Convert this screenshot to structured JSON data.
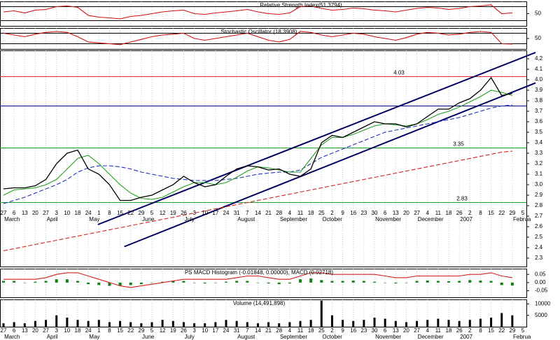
{
  "chart_data": [
    {
      "type": "line",
      "title": "Relative Strength Index(51.3794)",
      "ylim": [
        15,
        85
      ],
      "yticks": [
        50
      ],
      "levels": [
        {
          "value": 30,
          "color": "#000000",
          "show_label": false
        },
        {
          "value": 70,
          "color": "#000000",
          "show_label": false
        }
      ],
      "series": [
        {
          "color": "#d01010",
          "dash": false,
          "values": [
            55,
            58,
            52,
            60,
            62,
            70,
            72,
            68,
            45,
            40,
            38,
            35,
            42,
            45,
            50,
            55,
            58,
            60,
            50,
            48,
            52,
            55,
            58,
            62,
            55,
            50,
            48,
            52,
            70,
            72,
            65,
            60,
            62,
            66,
            64,
            60,
            58,
            55,
            60,
            65,
            68,
            66,
            62,
            65,
            70,
            72,
            75,
            50,
            52,
            null
          ]
        }
      ]
    },
    {
      "type": "line",
      "title": "Stochastic Oscillator (18.3908)",
      "ylim": [
        -10,
        110
      ],
      "yticks": [
        50
      ],
      "levels": [
        {
          "value": 20,
          "color": "#000000",
          "show_label": false
        },
        {
          "value": 80,
          "color": "#000000",
          "show_label": false
        }
      ],
      "series": [
        {
          "color": "#d01010",
          "dash": false,
          "values": [
            80,
            70,
            60,
            75,
            85,
            90,
            85,
            60,
            30,
            25,
            20,
            15,
            30,
            45,
            60,
            70,
            75,
            80,
            50,
            40,
            50,
            60,
            70,
            80,
            60,
            40,
            30,
            45,
            90,
            85,
            70,
            60,
            70,
            80,
            75,
            60,
            50,
            40,
            55,
            75,
            85,
            80,
            70,
            75,
            85,
            90,
            85,
            20,
            18,
            null
          ]
        }
      ]
    },
    {
      "type": "line",
      "categories": [
        "27",
        "6",
        "13",
        "20",
        "27",
        "3",
        "10",
        "18",
        "24",
        "1",
        "8",
        "15",
        "22",
        "29",
        "5",
        "12",
        "19",
        "26",
        "3",
        "10",
        "17",
        "24",
        "31",
        "7",
        "14",
        "21",
        "28",
        "4",
        "11",
        "18",
        "25",
        "2",
        "9",
        "16",
        "23",
        "30",
        "6",
        "13",
        "20",
        "27",
        "4",
        "11",
        "18",
        "26",
        "2",
        "8",
        "15",
        "22",
        "29",
        "5"
      ],
      "months": [
        "March",
        "April",
        "May",
        "June",
        "July",
        "August",
        "September",
        "October",
        "November",
        "December",
        "2007",
        "Februa"
      ],
      "ylim": [
        2.22,
        4.28
      ],
      "yticks": [
        2.3,
        2.4,
        2.5,
        2.6,
        2.7,
        2.8,
        2.9,
        {
          "value": 3,
          "label": "3.0"
        },
        3.1,
        3.2,
        3.3,
        3.4,
        3.5,
        3.6,
        3.7,
        3.8,
        3.9,
        {
          "value": 4,
          "label": "4.0"
        },
        4.1,
        4.2
      ],
      "levels": [
        {
          "value": 4.03,
          "color": "#e03030",
          "show_label": true
        },
        {
          "value": 3.75,
          "color": "#000080",
          "show_label": false
        },
        {
          "value": 3.35,
          "color": "#20a020",
          "show_label": true
        },
        {
          "value": 2.83,
          "color": "#20a020",
          "show_label": true
        }
      ],
      "trendlines": [
        {
          "x": [
            8.9,
            50.2
          ],
          "values": [
            2.62,
            4.26
          ],
          "color": "#000060"
        },
        {
          "x": [
            11.4,
            50.2
          ],
          "values": [
            2.41,
            3.97
          ],
          "color": "#000060"
        }
      ],
      "series": [
        {
          "color": "#d02020",
          "dash": true,
          "values": [
            2.37,
            2.39,
            2.41,
            2.43,
            2.45,
            2.47,
            2.49,
            2.51,
            2.53,
            2.55,
            2.57,
            2.59,
            2.61,
            2.63,
            2.65,
            2.67,
            2.69,
            2.71,
            2.73,
            2.75,
            2.77,
            2.79,
            2.81,
            2.83,
            2.85,
            2.87,
            2.89,
            2.91,
            2.93,
            2.95,
            2.97,
            2.99,
            3.01,
            3.03,
            3.05,
            3.07,
            3.09,
            3.11,
            3.13,
            3.15,
            3.17,
            3.19,
            3.21,
            3.23,
            3.25,
            3.27,
            3.29,
            3.31,
            3.32,
            null
          ]
        },
        {
          "color": "#2030c0",
          "dash": true,
          "values": [
            2.82,
            2.85,
            2.88,
            2.92,
            2.96,
            3.0,
            3.05,
            3.12,
            3.16,
            3.18,
            3.18,
            3.17,
            3.15,
            3.12,
            3.1,
            3.08,
            3.06,
            3.05,
            3.04,
            3.04,
            3.04,
            3.05,
            3.06,
            3.08,
            3.1,
            3.11,
            3.12,
            3.12,
            3.14,
            3.2,
            3.26,
            3.3,
            3.34,
            3.38,
            3.42,
            3.46,
            3.5,
            3.52,
            3.54,
            3.56,
            3.58,
            3.6,
            3.62,
            3.64,
            3.67,
            3.7,
            3.73,
            3.75,
            3.76,
            null
          ]
        },
        {
          "color": "#20a020",
          "dash": false,
          "values": [
            2.9,
            2.95,
            2.96,
            2.97,
            3.0,
            3.05,
            3.15,
            3.25,
            3.28,
            3.2,
            3.1,
            3.0,
            2.92,
            2.87,
            2.86,
            2.88,
            2.93,
            2.98,
            3.02,
            3.02,
            3.0,
            3.02,
            3.07,
            3.13,
            3.17,
            3.16,
            3.14,
            3.12,
            3.12,
            3.25,
            3.38,
            3.45,
            3.45,
            3.48,
            3.52,
            3.56,
            3.58,
            3.57,
            3.56,
            3.58,
            3.62,
            3.67,
            3.7,
            3.74,
            3.79,
            3.84,
            3.9,
            3.88,
            3.85,
            null
          ]
        },
        {
          "color": "#000000",
          "dash": false,
          "values": [
            2.96,
            2.97,
            2.97,
            2.99,
            3.05,
            3.2,
            3.3,
            3.33,
            3.15,
            3.1,
            3.0,
            2.85,
            2.85,
            2.88,
            2.9,
            2.95,
            3.0,
            3.08,
            3.02,
            2.98,
            3.0,
            3.08,
            3.15,
            3.18,
            3.17,
            3.14,
            3.15,
            3.1,
            3.08,
            3.15,
            3.4,
            3.47,
            3.45,
            3.5,
            3.55,
            3.6,
            3.58,
            3.58,
            3.55,
            3.58,
            3.65,
            3.72,
            3.72,
            3.78,
            3.82,
            3.9,
            4.02,
            3.85,
            3.87,
            null
          ]
        }
      ]
    },
    {
      "type": "macd",
      "title": "PS MACD Histogram (-0.01848, 0.00000), MACD (0.02718)",
      "ylim": [
        -0.09,
        0.085
      ],
      "yticks": [
        -0.05,
        {
          "value": 0,
          "label": "0.00"
        },
        0.05
      ],
      "bar_color": "#108010",
      "values": [
        0.01,
        0.01,
        0,
        0.005,
        0.01,
        0.02,
        0.02,
        0.01,
        -0.01,
        -0.015,
        -0.02,
        -0.02,
        -0.015,
        -0.01,
        0,
        0.005,
        0.01,
        0.01,
        0,
        -0.005,
        0,
        0.005,
        0.01,
        0.01,
        0,
        -0.005,
        -0.01,
        -0.005,
        0.02,
        0.025,
        0.015,
        0.01,
        0.01,
        0.012,
        0.01,
        0.005,
        0,
        -0.005,
        0,
        0.01,
        0.012,
        0.01,
        0.008,
        0.01,
        0.015,
        0.012,
        0.01,
        -0.015,
        -0.018,
        null
      ],
      "series": [
        {
          "color": "#d02020",
          "dash": false,
          "values": [
            0.02,
            0.02,
            0.02,
            0.02,
            0.03,
            0.05,
            0.06,
            0.06,
            0.04,
            0.02,
            0,
            -0.02,
            -0.03,
            -0.02,
            -0.01,
            0,
            0.01,
            0.02,
            0.02,
            0.02,
            0.02,
            0.02,
            0.03,
            0.04,
            0.04,
            0.03,
            0.02,
            0.02,
            0.04,
            0.06,
            0.06,
            0.05,
            0.05,
            0.05,
            0.05,
            0.05,
            0.04,
            0.03,
            0.03,
            0.04,
            0.04,
            0.04,
            0.04,
            0.04,
            0.05,
            0.05,
            0.06,
            0.04,
            0.03,
            null
          ]
        }
      ]
    },
    {
      "type": "bar",
      "title": "Volume (14,491,898)",
      "ylim": [
        0,
        12000
      ],
      "yticks": [
        5000,
        10000
      ],
      "bar_color": "#000000",
      "values": [
        1500,
        2000,
        1500,
        2500,
        3000,
        5000,
        4000,
        3000,
        2500,
        3000,
        2000,
        2500,
        2000,
        1500,
        2000,
        3000,
        2500,
        2000,
        1500,
        1500,
        2000,
        3000,
        2500,
        2000,
        1500,
        2000,
        1500,
        2000,
        2500,
        3000,
        11500,
        5000,
        3000,
        2500,
        3000,
        4000,
        3500,
        2500,
        2000,
        2500,
        3000,
        3500,
        3000,
        2500,
        3000,
        3500,
        4000,
        6000,
        5000,
        null
      ]
    }
  ]
}
